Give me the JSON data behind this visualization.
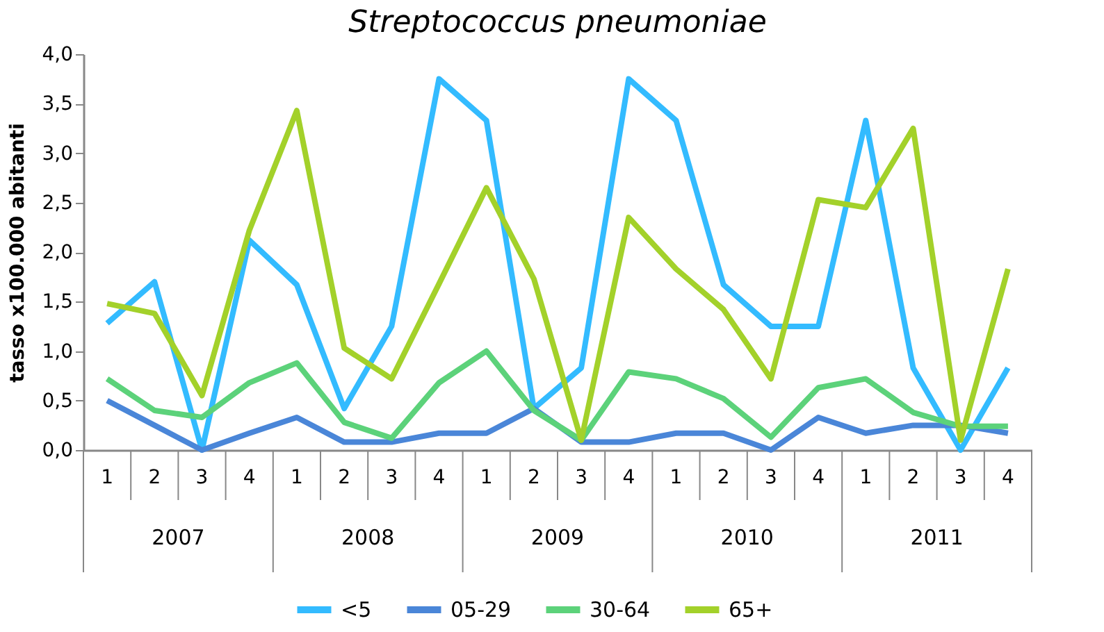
{
  "chart_data": {
    "type": "line",
    "title": "Streptococcus pneumoniae",
    "ylabel": "tasso x100.000 abitanti",
    "categories": [
      "1",
      "2",
      "3",
      "4",
      "1",
      "2",
      "3",
      "4",
      "1",
      "2",
      "3",
      "4",
      "1",
      "2",
      "3",
      "4",
      "1",
      "2",
      "3",
      "4"
    ],
    "annotations": [
      "2007",
      "2008",
      "2009",
      "2010",
      "2011"
    ],
    "series": [
      {
        "name": "<5",
        "color": "#33bbff",
        "values": [
          1.28,
          1.7,
          0.0,
          2.12,
          1.67,
          0.42,
          1.25,
          3.75,
          3.33,
          0.42,
          0.83,
          3.75,
          3.33,
          1.67,
          1.25,
          1.25,
          3.33,
          0.83,
          0.0,
          0.83
        ]
      },
      {
        "name": "05-29",
        "color": "#4a86d8",
        "values": [
          0.5,
          0.25,
          0.0,
          0.17,
          0.33,
          0.08,
          0.08,
          0.17,
          0.17,
          0.42,
          0.08,
          0.08,
          0.17,
          0.17,
          0.0,
          0.33,
          0.17,
          0.25,
          0.25,
          0.17
        ]
      },
      {
        "name": "30-64",
        "color": "#5cd27a",
        "values": [
          0.72,
          0.4,
          0.33,
          0.68,
          0.88,
          0.28,
          0.12,
          0.68,
          1.0,
          0.4,
          0.1,
          0.79,
          0.72,
          0.52,
          0.13,
          0.63,
          0.72,
          0.38,
          0.24,
          0.24
        ]
      },
      {
        "name": "65+",
        "color": "#a3d12a",
        "values": [
          1.48,
          1.38,
          0.55,
          2.22,
          3.43,
          1.03,
          0.72,
          1.68,
          2.65,
          1.73,
          0.1,
          2.35,
          1.83,
          1.42,
          0.72,
          2.53,
          2.45,
          3.25,
          0.1,
          1.83
        ]
      }
    ],
    "ylim": [
      0,
      4
    ],
    "yticks": [
      {
        "value": 0,
        "label": "0,0"
      },
      {
        "value": 0.5,
        "label": "0,5"
      },
      {
        "value": 1,
        "label": "1,0"
      },
      {
        "value": 1.5,
        "label": "1,5"
      },
      {
        "value": 2,
        "label": "2,0"
      },
      {
        "value": 2.5,
        "label": "2,5"
      },
      {
        "value": 3,
        "label": "3,0"
      },
      {
        "value": 3.5,
        "label": "3,5"
      },
      {
        "value": 4,
        "label": "4,0"
      }
    ],
    "grid": false,
    "legend": "bottom",
    "marker": "none",
    "line_style": "solid"
  }
}
